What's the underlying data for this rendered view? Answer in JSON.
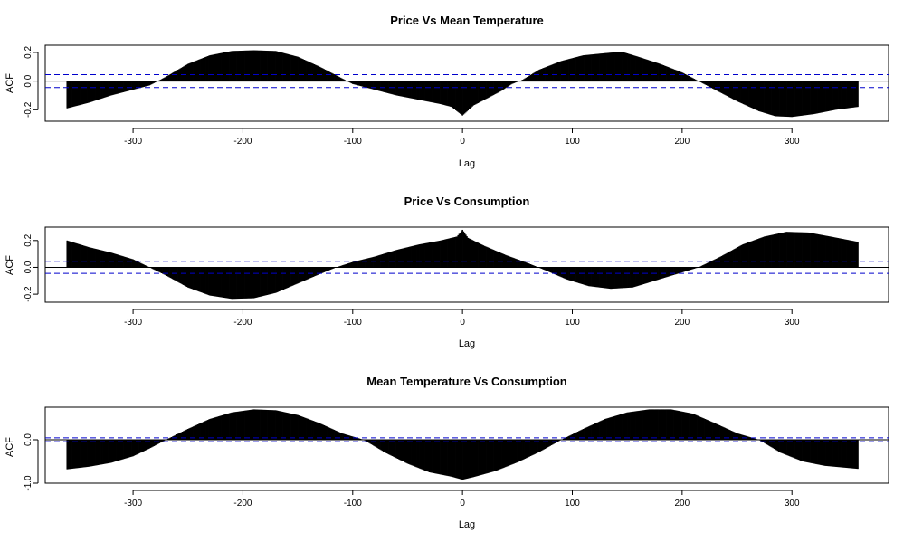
{
  "chart_data": [
    {
      "type": "bar",
      "title": "Price Vs Mean Temperature",
      "xlabel": "Lag",
      "ylabel": "ACF",
      "xlim": [
        -380,
        388
      ],
      "ylim": [
        -0.28,
        0.25
      ],
      "x_ticks": [
        "-300",
        "-200",
        "-100",
        "0",
        "100",
        "200",
        "300"
      ],
      "y_ticks": [
        "-0.2",
        "0.0",
        "0.2"
      ],
      "conf_limit": 0.045,
      "lag_range": [
        -360,
        360
      ],
      "knots": [
        [
          -360,
          -0.19
        ],
        [
          -340,
          -0.15
        ],
        [
          -320,
          -0.1
        ],
        [
          -300,
          -0.06
        ],
        [
          -285,
          -0.03
        ],
        [
          -270,
          0.03
        ],
        [
          -250,
          0.12
        ],
        [
          -230,
          0.18
        ],
        [
          -210,
          0.21
        ],
        [
          -190,
          0.215
        ],
        [
          -170,
          0.21
        ],
        [
          -150,
          0.17
        ],
        [
          -130,
          0.1
        ],
        [
          -110,
          0.02
        ],
        [
          -100,
          -0.02
        ],
        [
          -80,
          -0.06
        ],
        [
          -60,
          -0.1
        ],
        [
          -40,
          -0.13
        ],
        [
          -20,
          -0.16
        ],
        [
          -10,
          -0.18
        ],
        [
          0,
          -0.24
        ],
        [
          10,
          -0.17
        ],
        [
          20,
          -0.13
        ],
        [
          35,
          -0.07
        ],
        [
          45,
          -0.02
        ],
        [
          55,
          0.01
        ],
        [
          70,
          0.08
        ],
        [
          90,
          0.14
        ],
        [
          110,
          0.18
        ],
        [
          130,
          0.195
        ],
        [
          145,
          0.205
        ],
        [
          160,
          0.17
        ],
        [
          180,
          0.12
        ],
        [
          200,
          0.06
        ],
        [
          215,
          0.0
        ],
        [
          230,
          -0.06
        ],
        [
          250,
          -0.14
        ],
        [
          270,
          -0.21
        ],
        [
          285,
          -0.245
        ],
        [
          300,
          -0.25
        ],
        [
          320,
          -0.23
        ],
        [
          340,
          -0.2
        ],
        [
          360,
          -0.18
        ]
      ],
      "colors": {
        "bar": "#000000",
        "conf": "#0000cc",
        "zero": "#000000"
      }
    },
    {
      "type": "bar",
      "title": "Price Vs Consumption",
      "xlabel": "Lag",
      "ylabel": "ACF",
      "xlim": [
        -380,
        388
      ],
      "ylim": [
        -0.26,
        0.3
      ],
      "x_ticks": [
        "-300",
        "-200",
        "-100",
        "0",
        "100",
        "200",
        "300"
      ],
      "y_ticks": [
        "-0.2",
        "0.0",
        "0.2"
      ],
      "conf_limit": 0.045,
      "lag_range": [
        -360,
        360
      ],
      "knots": [
        [
          -360,
          0.2
        ],
        [
          -340,
          0.15
        ],
        [
          -320,
          0.11
        ],
        [
          -300,
          0.06
        ],
        [
          -285,
          0.0
        ],
        [
          -270,
          -0.06
        ],
        [
          -250,
          -0.15
        ],
        [
          -230,
          -0.21
        ],
        [
          -210,
          -0.235
        ],
        [
          -190,
          -0.23
        ],
        [
          -170,
          -0.19
        ],
        [
          -150,
          -0.12
        ],
        [
          -130,
          -0.05
        ],
        [
          -115,
          0.0
        ],
        [
          -100,
          0.04
        ],
        [
          -80,
          0.08
        ],
        [
          -60,
          0.13
        ],
        [
          -40,
          0.17
        ],
        [
          -20,
          0.2
        ],
        [
          -5,
          0.23
        ],
        [
          0,
          0.28
        ],
        [
          5,
          0.22
        ],
        [
          20,
          0.16
        ],
        [
          40,
          0.09
        ],
        [
          60,
          0.03
        ],
        [
          75,
          -0.02
        ],
        [
          95,
          -0.09
        ],
        [
          115,
          -0.14
        ],
        [
          135,
          -0.16
        ],
        [
          155,
          -0.15
        ],
        [
          175,
          -0.1
        ],
        [
          195,
          -0.05
        ],
        [
          215,
          0.0
        ],
        [
          235,
          0.08
        ],
        [
          255,
          0.17
        ],
        [
          275,
          0.23
        ],
        [
          295,
          0.265
        ],
        [
          315,
          0.26
        ],
        [
          335,
          0.23
        ],
        [
          360,
          0.19
        ]
      ],
      "colors": {
        "bar": "#000000",
        "conf": "#0000cc",
        "zero": "#000000"
      }
    },
    {
      "type": "bar",
      "title": "Mean Temperature Vs Consumption",
      "xlabel": "Lag",
      "ylabel": "ACF",
      "xlim": [
        -380,
        388
      ],
      "ylim": [
        -1.0,
        0.75
      ],
      "x_ticks": [
        "-300",
        "-200",
        "-100",
        "0",
        "100",
        "200",
        "300"
      ],
      "y_ticks": [
        "-1.0",
        "0.0"
      ],
      "conf_limit": 0.045,
      "lag_range": [
        -360,
        360
      ],
      "knots": [
        [
          -360,
          -0.68
        ],
        [
          -340,
          -0.62
        ],
        [
          -320,
          -0.53
        ],
        [
          -300,
          -0.38
        ],
        [
          -285,
          -0.2
        ],
        [
          -270,
          0.0
        ],
        [
          -250,
          0.25
        ],
        [
          -230,
          0.48
        ],
        [
          -210,
          0.63
        ],
        [
          -190,
          0.7
        ],
        [
          -170,
          0.68
        ],
        [
          -150,
          0.57
        ],
        [
          -130,
          0.38
        ],
        [
          -110,
          0.15
        ],
        [
          -90,
          0.0
        ],
        [
          -70,
          -0.3
        ],
        [
          -50,
          -0.55
        ],
        [
          -30,
          -0.75
        ],
        [
          -10,
          -0.85
        ],
        [
          0,
          -0.92
        ],
        [
          10,
          -0.86
        ],
        [
          30,
          -0.72
        ],
        [
          50,
          -0.52
        ],
        [
          70,
          -0.28
        ],
        [
          90,
          0.0
        ],
        [
          110,
          0.25
        ],
        [
          130,
          0.48
        ],
        [
          150,
          0.63
        ],
        [
          170,
          0.7
        ],
        [
          190,
          0.7
        ],
        [
          210,
          0.6
        ],
        [
          230,
          0.38
        ],
        [
          250,
          0.15
        ],
        [
          270,
          0.0
        ],
        [
          290,
          -0.3
        ],
        [
          310,
          -0.5
        ],
        [
          330,
          -0.6
        ],
        [
          360,
          -0.67
        ]
      ],
      "colors": {
        "bar": "#000000",
        "conf": "#0000cc",
        "zero": "#000000"
      }
    }
  ]
}
